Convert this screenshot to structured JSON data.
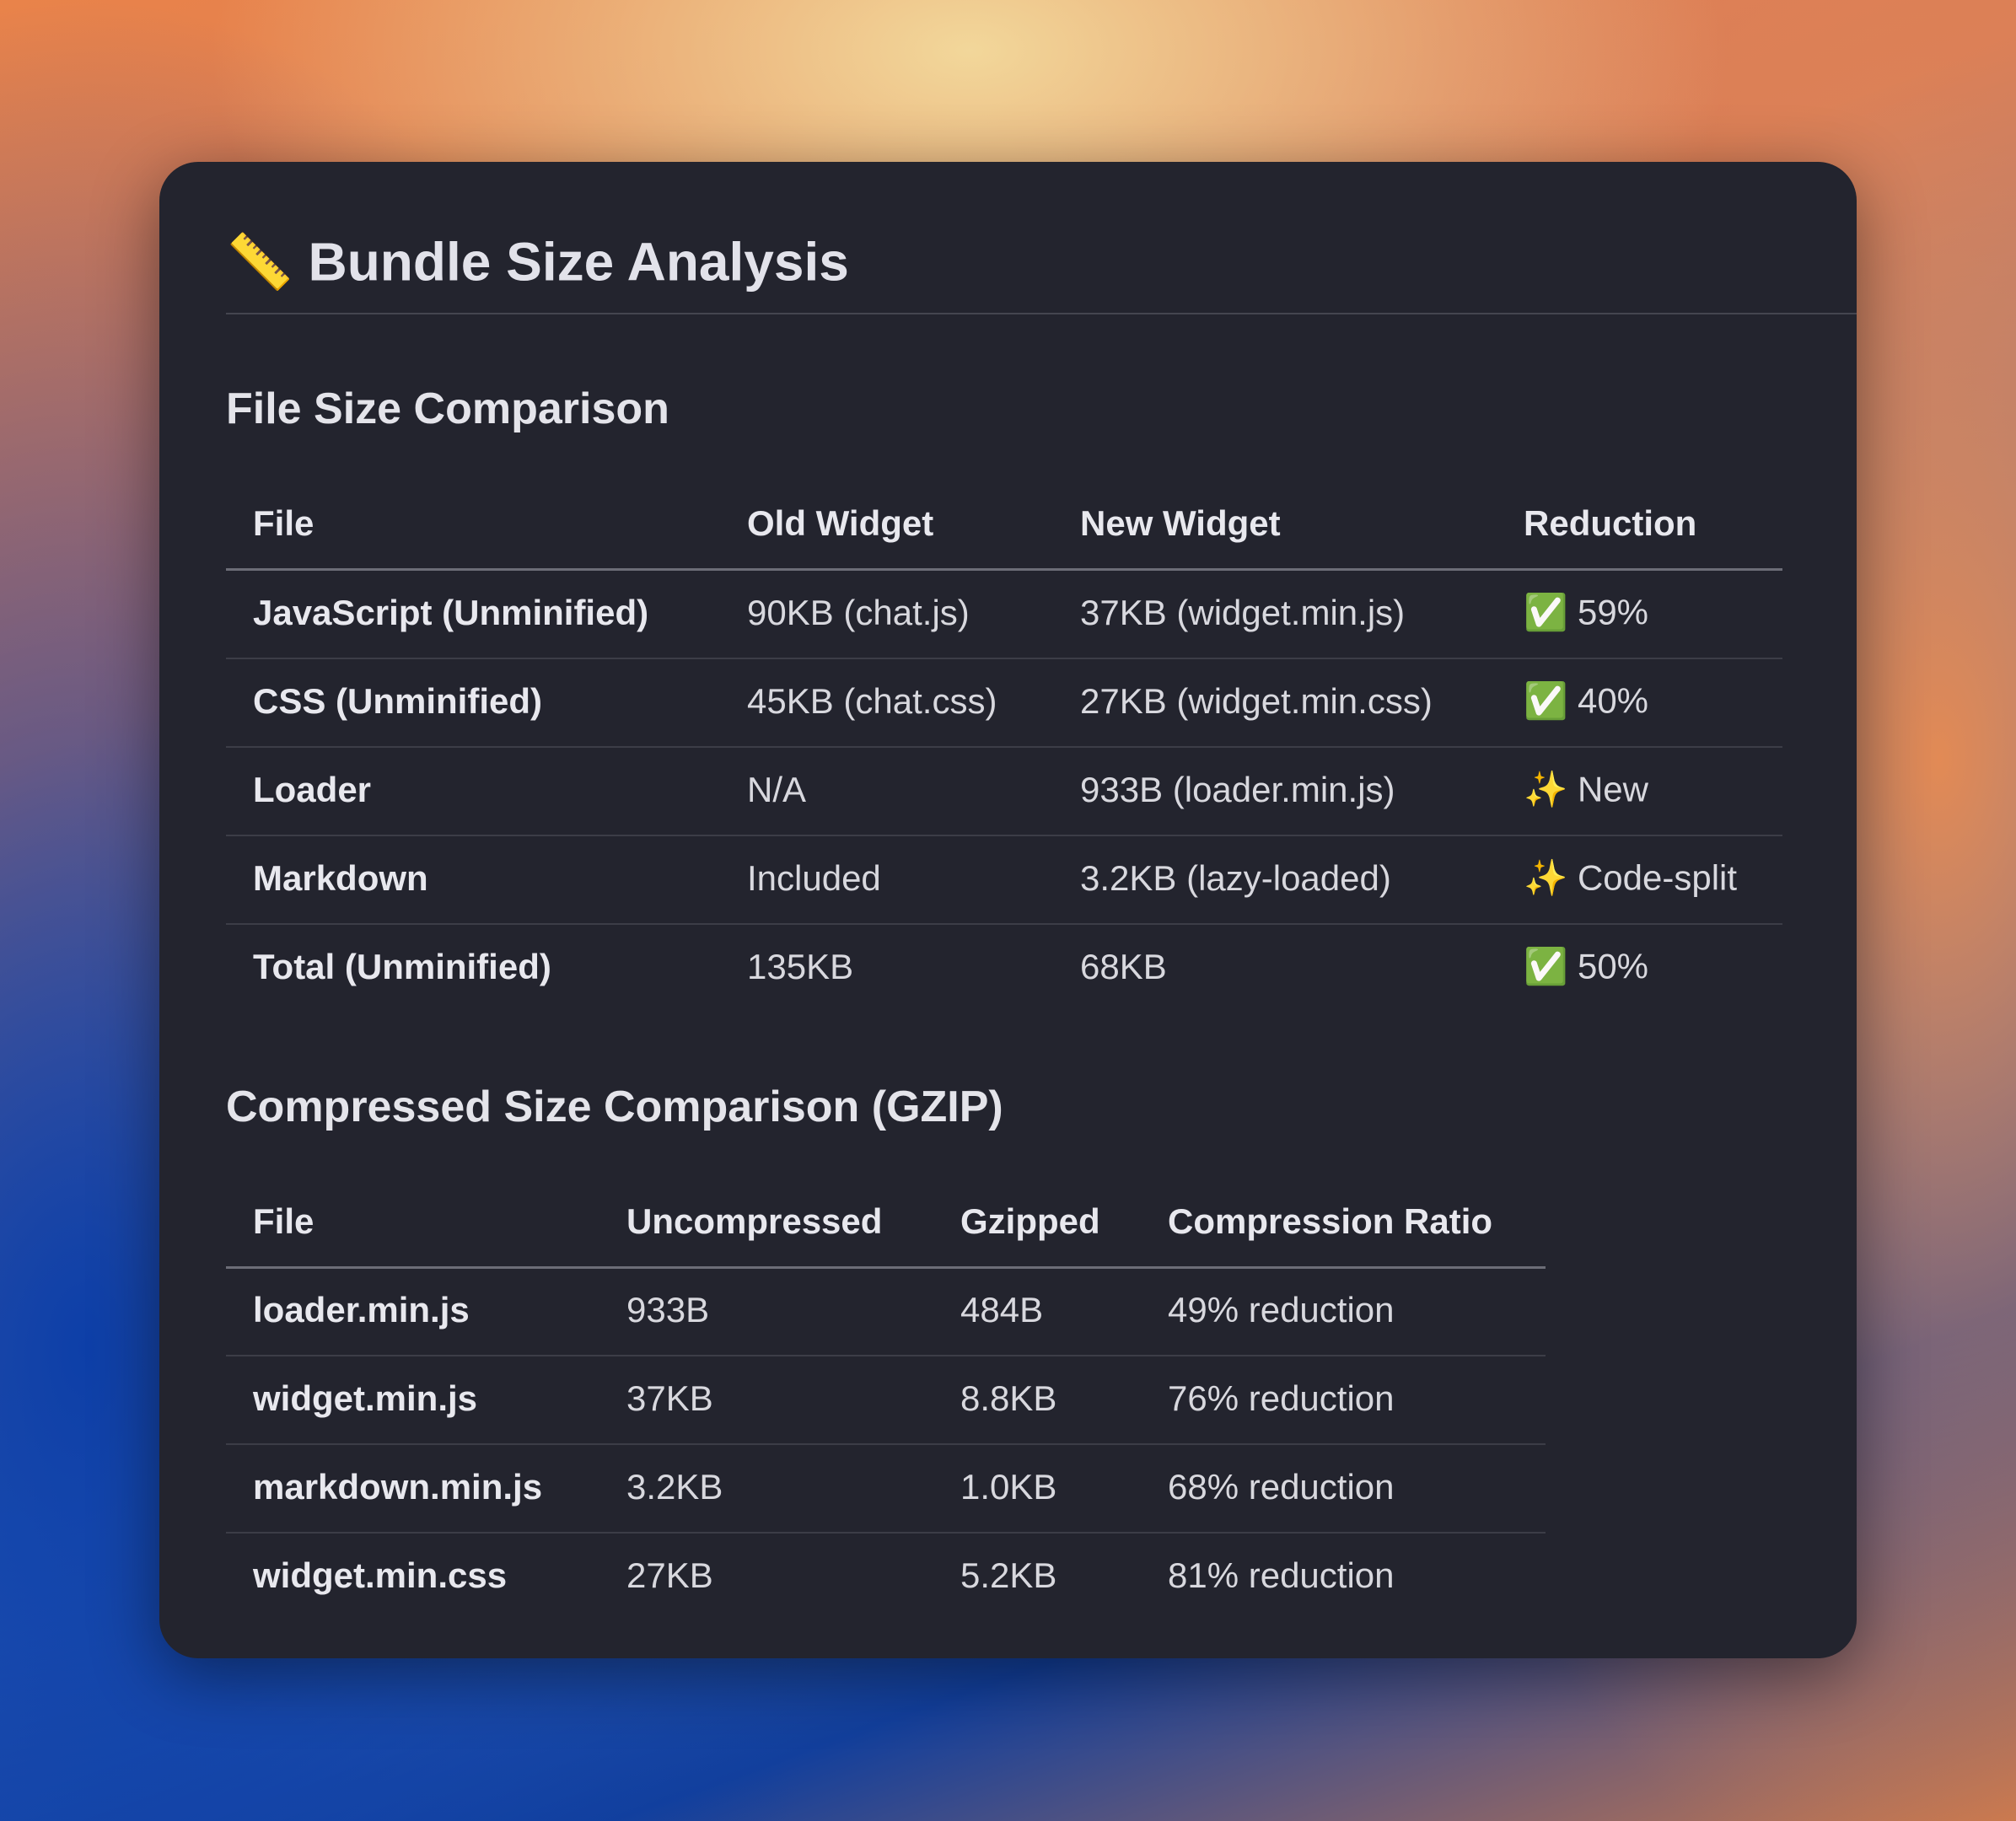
{
  "title": "📏 Bundle Size Analysis",
  "sections": [
    {
      "heading": "File Size Comparison",
      "table": {
        "header": [
          "File",
          "Old Widget",
          "New Widget",
          "Reduction"
        ],
        "rows": [
          [
            "JavaScript (Unminified)",
            "90KB (chat.js)",
            "37KB (widget.min.js)",
            "✅ 59%"
          ],
          [
            "CSS (Unminified)",
            "45KB (chat.css)",
            "27KB (widget.min.css)",
            "✅ 40%"
          ],
          [
            "Loader",
            "N/A",
            "933B (loader.min.js)",
            "✨ New"
          ],
          [
            "Markdown",
            "Included",
            "3.2KB (lazy-loaded)",
            "✨ Code-split"
          ],
          [
            "Total (Unminified)",
            "135KB",
            "68KB",
            "✅ 50%"
          ]
        ]
      }
    },
    {
      "heading": "Compressed Size Comparison (GZIP)",
      "table": {
        "header": [
          "File",
          "Uncompressed",
          "Gzipped",
          "Compression Ratio"
        ],
        "rows": [
          [
            "loader.min.js",
            "933B",
            "484B",
            "49% reduction"
          ],
          [
            "widget.min.js",
            "37KB",
            "8.8KB",
            "76% reduction"
          ],
          [
            "markdown.min.js",
            "3.2KB",
            "1.0KB",
            "68% reduction"
          ],
          [
            "widget.min.css",
            "27KB",
            "5.2KB",
            "81% reduction"
          ]
        ]
      }
    }
  ]
}
